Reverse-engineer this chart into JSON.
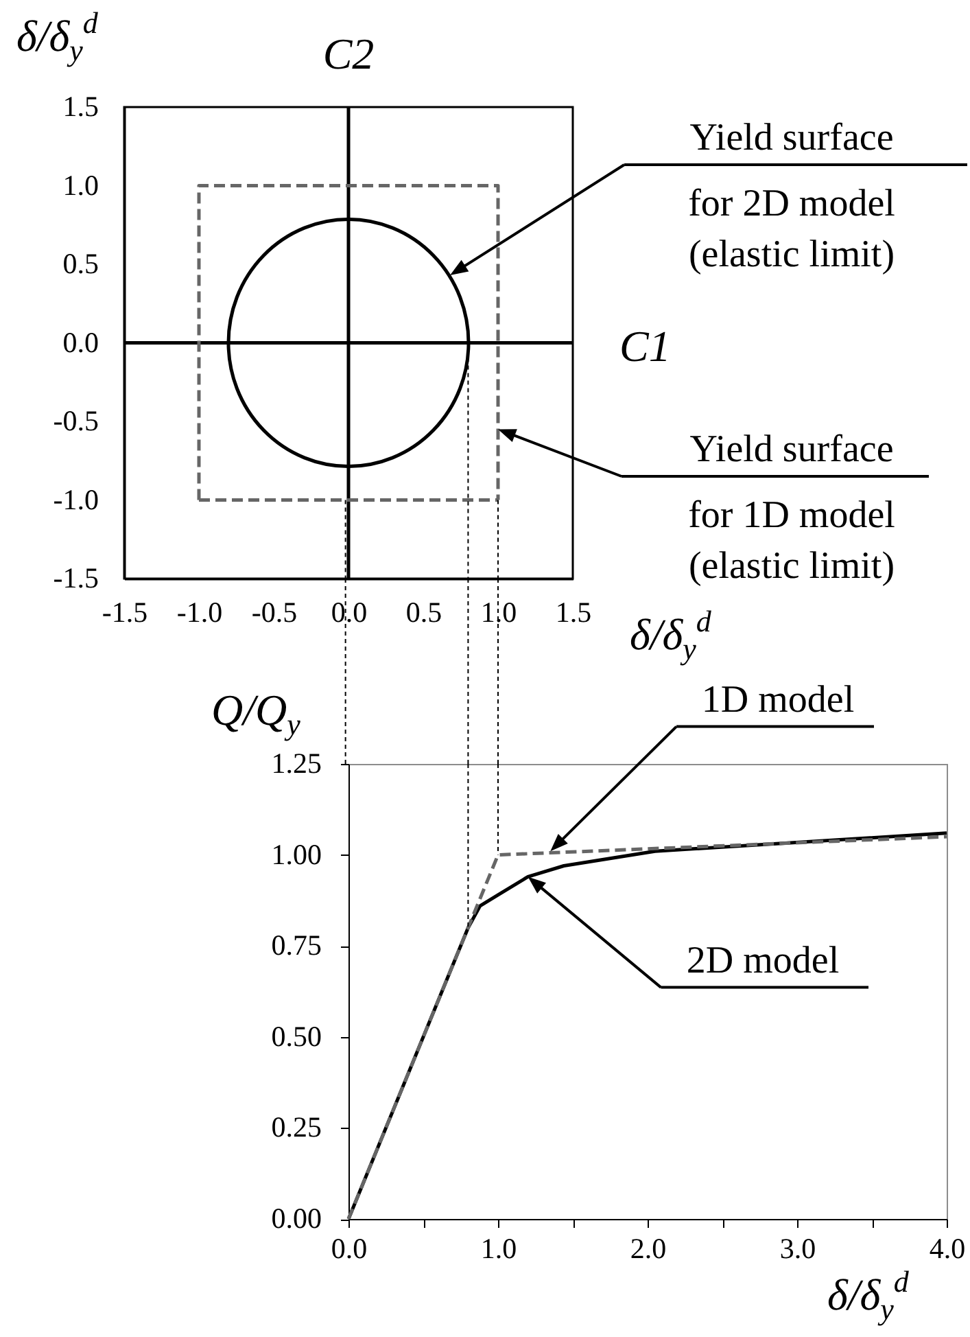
{
  "chart_data": [
    {
      "type": "line",
      "xlabel": "δ/δ$_{y}$$^{d}$",
      "ylabel": "δ/δ$_{y}$$^{d}$",
      "xlim": [
        -1.5,
        1.5
      ],
      "ylim": [
        -1.5,
        1.5
      ],
      "xticks": [
        -1.5,
        {
          "value": -1,
          "label": "-1.0"
        },
        -0.5,
        {
          "value": 0,
          "label": "0.0"
        },
        0.5,
        {
          "value": 1,
          "label": "1.0"
        },
        1.5
      ],
      "yticks": [
        -1.5,
        {
          "value": -1,
          "label": "-1.0"
        },
        -0.5,
        {
          "value": 0,
          "label": "0.0"
        },
        0.5,
        {
          "value": 1,
          "label": "1.0"
        },
        1.5
      ],
      "series": [
        {
          "color": "#000000",
          "line_style": "solid",
          "x": [
            -1.5,
            1.5
          ],
          "values": [
            0,
            0
          ]
        },
        {
          "color": "#000000",
          "line_style": "solid",
          "x": [
            0,
            0
          ],
          "values": [
            -1.5,
            1.5
          ]
        },
        {
          "color": "#666666",
          "line_style": "dashed",
          "x": [
            -1,
            -1,
            1,
            1
          ],
          "values": [
            -1,
            1,
            1,
            -1
          ]
        },
        {
          "color": "#666666",
          "line_style": "dashed",
          "x": [
            -1,
            1
          ],
          "values": [
            -1,
            -1
          ]
        },
        {
          "color": "#000000",
          "line_style": "dotted",
          "x": [
            -0.02,
            -0.02
          ],
          "values": [
            -1,
            -1.5
          ]
        },
        {
          "color": "#000000",
          "line_style": "dotted",
          "x": [
            0.8,
            0.8
          ],
          "values": [
            0,
            -1.5
          ]
        },
        {
          "color": "#000000",
          "line_style": "dotted",
          "x": [
            1,
            1
          ],
          "values": [
            -1,
            -1.5
          ]
        }
      ],
      "annotations": [
        {
          "text": "C2",
          "x": 0,
          "y": 1.5
        },
        {
          "text": "C1",
          "x": 1.5,
          "y": 0
        },
        "Yield surface\nfor 2D model\n(elastic limit)",
        "Yield surface\nfor 1D model\n(elastic limit)"
      ]
    },
    {
      "type": "line",
      "xlabel": "δ/δ$_{y}$$^{d}$",
      "ylabel": "Q/Q$_{y}$",
      "xlim": [
        0,
        4
      ],
      "ylim": [
        0,
        1.25
      ],
      "xticks": [
        {
          "value": 0,
          "label": "0.0"
        },
        {
          "value": 0.5,
          "label": null
        },
        {
          "value": 1,
          "label": "1.0"
        },
        {
          "value": 1.5,
          "label": null
        },
        {
          "value": 2,
          "label": "2.0"
        },
        {
          "value": 2.5,
          "label": null
        },
        {
          "value": 3,
          "label": "3.0"
        },
        {
          "value": 3.5,
          "label": null
        },
        {
          "value": 4,
          "label": "4.0"
        }
      ],
      "yticks": [
        {
          "value": 0,
          "label": "0.00"
        },
        0.25,
        {
          "value": 0.5,
          "label": "0.50"
        },
        0.75,
        {
          "value": 1,
          "label": "1.00"
        },
        1.25
      ],
      "series": [
        {
          "color": "#000000",
          "line_style": "solid",
          "x": [
            0,
            0.8,
            0.88,
            1,
            1.2,
            1.44,
            2.05,
            4
          ],
          "values": [
            0,
            0.8,
            0.86,
            0.89,
            0.94,
            0.97,
            1.01,
            1.06
          ]
        },
        {
          "color": "#666666",
          "line_style": "dashed",
          "x": [
            0,
            1,
            4
          ],
          "values": [
            0,
            1,
            1.05
          ]
        },
        {
          "color": "#000000",
          "line_style": "dotted",
          "x": [
            0.8,
            0.8
          ],
          "values": [
            1.25,
            0.8
          ]
        },
        {
          "color": "#000000",
          "line_style": "dotted",
          "x": [
            1,
            1
          ],
          "values": [
            1.25,
            1
          ]
        }
      ],
      "annotations": [
        {
          "text": "1D model",
          "x": 1.35,
          "y": 1.01
        },
        {
          "text": "2D model",
          "x": 1.2,
          "y": 0.94
        }
      ]
    }
  ]
}
